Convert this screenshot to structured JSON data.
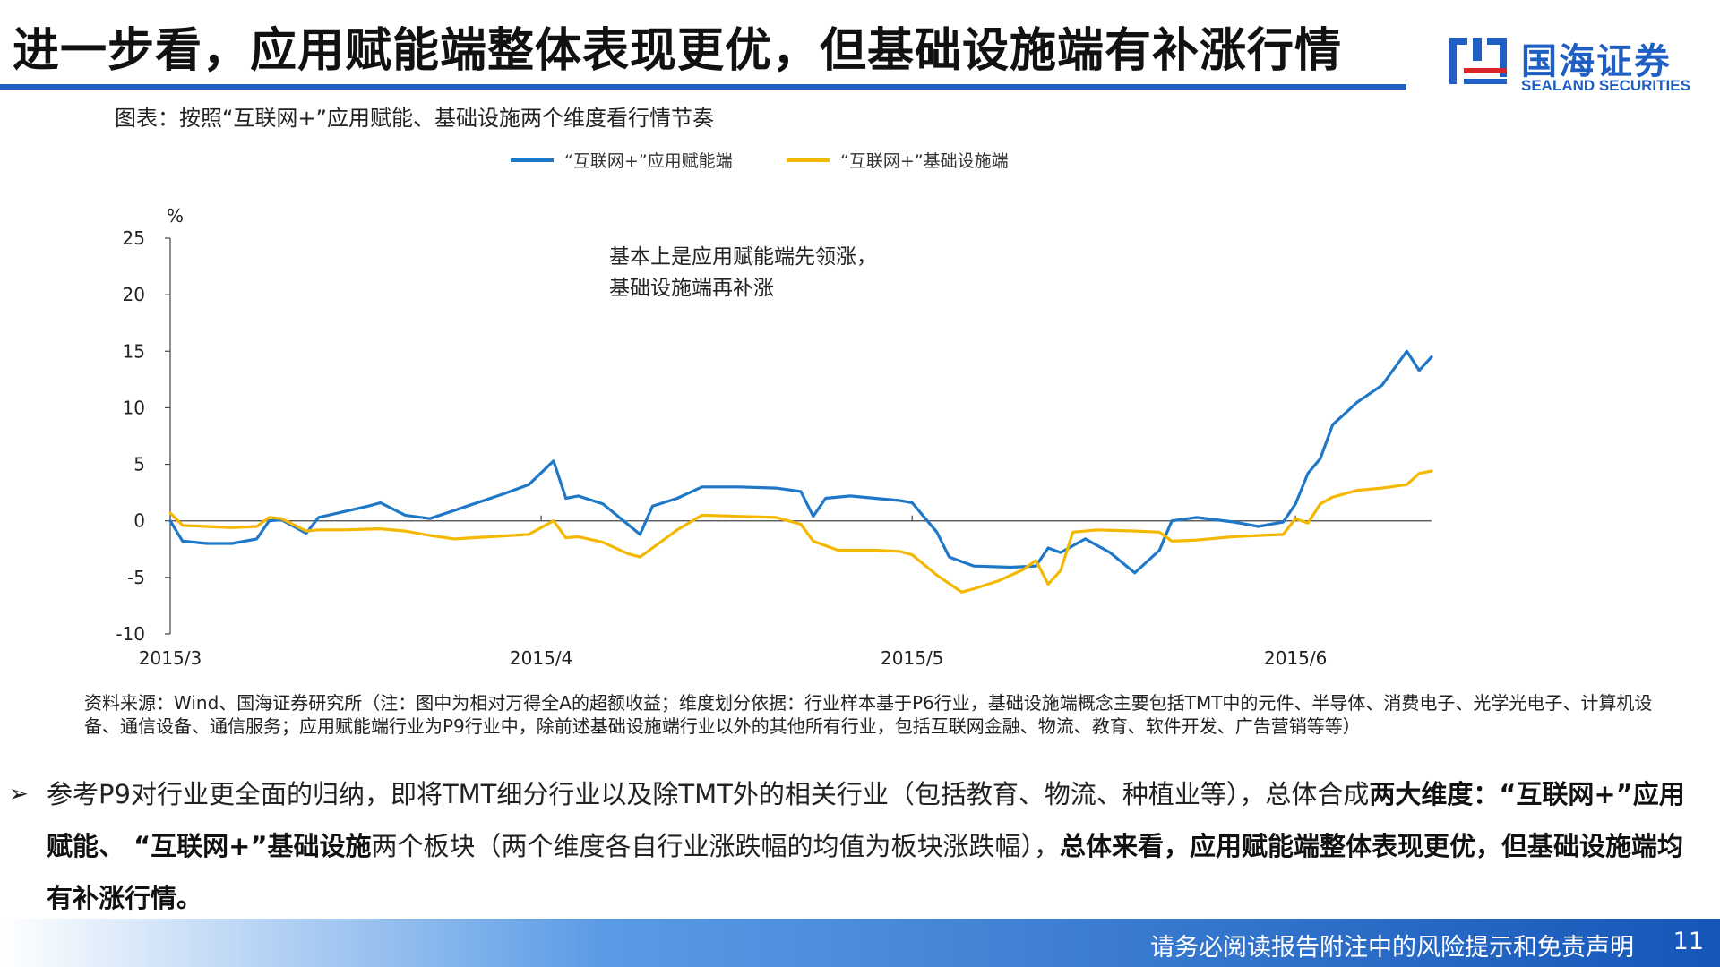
{
  "header": {
    "title": "进一步看，应用赋能端整体表现更优，但基础设施端有补涨行情",
    "logo_cn": "国海证券",
    "logo_en": "SEALAND SECURITIES",
    "accent_color": "#1f5fc4",
    "logo_icon": "sealand-logo-icon"
  },
  "figure": {
    "caption": "图表：按照“互联网+”应用赋能、基础设施两个维度看行情节奏",
    "note": "资料来源：Wind、国海证券研究所（注：图中为相对万得全A的超额收益；维度划分依据：行业样本基于P6行业，基础设施端概念主要包括TMT中的元件、半导体、消费电子、光学光电子、计算机设备、通信设备、通信服务；应用赋能端行业为P9行业中，除前述基础设施端行业以外的其他所有行业，包括互联网金融、物流、教育、软件开发、广告营销等等）"
  },
  "chart_data": {
    "type": "line",
    "title": "",
    "ylabel": "%",
    "xlabel": "",
    "ylim": [
      -10,
      25
    ],
    "yticks": [
      -10,
      -5,
      0,
      5,
      10,
      15,
      20,
      25
    ],
    "xlim": [
      "2015-03-02",
      "2015-06-12"
    ],
    "xtick_labels": [
      {
        "label": "2015/3",
        "date": "2015-03-02"
      },
      {
        "label": "2015/4",
        "date": "2015-04-01"
      },
      {
        "label": "2015/5",
        "date": "2015-05-01"
      },
      {
        "label": "2015/6",
        "date": "2015-06-01"
      }
    ],
    "legend_position": "top",
    "grid": false,
    "annotation": [
      "基本上是应用赋能端先领涨，",
      "基础设施端再补涨"
    ],
    "series": [
      {
        "name": "“互联网+”应用赋能端",
        "color": "#1f77c8",
        "points": [
          [
            "2015-03-02",
            0.0
          ],
          [
            "2015-03-03",
            -1.8
          ],
          [
            "2015-03-05",
            -2.0
          ],
          [
            "2015-03-07",
            -2.0
          ],
          [
            "2015-03-09",
            -1.6
          ],
          [
            "2015-03-10",
            0.0
          ],
          [
            "2015-03-11",
            0.1
          ],
          [
            "2015-03-13",
            -1.1
          ],
          [
            "2015-03-14",
            0.3
          ],
          [
            "2015-03-16",
            0.8
          ],
          [
            "2015-03-18",
            1.3
          ],
          [
            "2015-03-19",
            1.6
          ],
          [
            "2015-03-21",
            0.5
          ],
          [
            "2015-03-23",
            0.2
          ],
          [
            "2015-03-26",
            1.3
          ],
          [
            "2015-03-29",
            2.4
          ],
          [
            "2015-03-31",
            3.2
          ],
          [
            "2015-04-02",
            5.3
          ],
          [
            "2015-04-03",
            2.0
          ],
          [
            "2015-04-04",
            2.2
          ],
          [
            "2015-04-06",
            1.5
          ],
          [
            "2015-04-08",
            -0.3
          ],
          [
            "2015-04-09",
            -1.2
          ],
          [
            "2015-04-10",
            1.3
          ],
          [
            "2015-04-12",
            2.0
          ],
          [
            "2015-04-14",
            3.0
          ],
          [
            "2015-04-17",
            3.0
          ],
          [
            "2015-04-20",
            2.9
          ],
          [
            "2015-04-22",
            2.6
          ],
          [
            "2015-04-23",
            0.4
          ],
          [
            "2015-04-24",
            2.0
          ],
          [
            "2015-04-26",
            2.2
          ],
          [
            "2015-04-28",
            2.0
          ],
          [
            "2015-04-30",
            1.8
          ],
          [
            "2015-05-01",
            1.6
          ],
          [
            "2015-05-03",
            -1.0
          ],
          [
            "2015-05-04",
            -3.2
          ],
          [
            "2015-05-06",
            -4.0
          ],
          [
            "2015-05-09",
            -4.1
          ],
          [
            "2015-05-11",
            -4.0
          ],
          [
            "2015-05-12",
            -2.4
          ],
          [
            "2015-05-13",
            -2.8
          ],
          [
            "2015-05-15",
            -1.6
          ],
          [
            "2015-05-17",
            -2.8
          ],
          [
            "2015-05-19",
            -4.6
          ],
          [
            "2015-05-21",
            -2.6
          ],
          [
            "2015-05-22",
            0.0
          ],
          [
            "2015-05-24",
            0.3
          ],
          [
            "2015-05-27",
            -0.1
          ],
          [
            "2015-05-29",
            -0.5
          ],
          [
            "2015-05-31",
            -0.1
          ],
          [
            "2015-06-01",
            1.5
          ],
          [
            "2015-06-02",
            4.2
          ],
          [
            "2015-06-03",
            5.5
          ],
          [
            "2015-06-04",
            8.5
          ],
          [
            "2015-06-06",
            10.5
          ],
          [
            "2015-06-08",
            12.0
          ],
          [
            "2015-06-10",
            15.0
          ],
          [
            "2015-06-11",
            13.3
          ],
          [
            "2015-06-12",
            14.5
          ]
        ]
      },
      {
        "name": "“互联网+”基础设施端",
        "color": "#f5b800",
        "points": [
          [
            "2015-03-02",
            0.7
          ],
          [
            "2015-03-03",
            -0.4
          ],
          [
            "2015-03-05",
            -0.5
          ],
          [
            "2015-03-07",
            -0.6
          ],
          [
            "2015-03-09",
            -0.5
          ],
          [
            "2015-03-10",
            0.3
          ],
          [
            "2015-03-11",
            0.2
          ],
          [
            "2015-03-13",
            -0.9
          ],
          [
            "2015-03-14",
            -0.8
          ],
          [
            "2015-03-16",
            -0.8
          ],
          [
            "2015-03-19",
            -0.7
          ],
          [
            "2015-03-21",
            -0.9
          ],
          [
            "2015-03-23",
            -1.3
          ],
          [
            "2015-03-25",
            -1.6
          ],
          [
            "2015-03-28",
            -1.4
          ],
          [
            "2015-03-31",
            -1.2
          ],
          [
            "2015-04-02",
            0.0
          ],
          [
            "2015-04-03",
            -1.5
          ],
          [
            "2015-04-04",
            -1.4
          ],
          [
            "2015-04-06",
            -1.9
          ],
          [
            "2015-04-08",
            -2.9
          ],
          [
            "2015-04-09",
            -3.2
          ],
          [
            "2015-04-10",
            -2.4
          ],
          [
            "2015-04-12",
            -0.8
          ],
          [
            "2015-04-14",
            0.5
          ],
          [
            "2015-04-17",
            0.4
          ],
          [
            "2015-04-20",
            0.3
          ],
          [
            "2015-04-22",
            -0.3
          ],
          [
            "2015-04-23",
            -1.8
          ],
          [
            "2015-04-25",
            -2.6
          ],
          [
            "2015-04-28",
            -2.6
          ],
          [
            "2015-04-30",
            -2.7
          ],
          [
            "2015-05-01",
            -3.0
          ],
          [
            "2015-05-03",
            -4.8
          ],
          [
            "2015-05-05",
            -6.3
          ],
          [
            "2015-05-06",
            -6.0
          ],
          [
            "2015-05-08",
            -5.3
          ],
          [
            "2015-05-10",
            -4.3
          ],
          [
            "2015-05-11",
            -3.5
          ],
          [
            "2015-05-12",
            -5.6
          ],
          [
            "2015-05-13",
            -4.4
          ],
          [
            "2015-05-14",
            -1.0
          ],
          [
            "2015-05-16",
            -0.8
          ],
          [
            "2015-05-19",
            -0.9
          ],
          [
            "2015-05-21",
            -1.0
          ],
          [
            "2015-05-22",
            -1.8
          ],
          [
            "2015-05-24",
            -1.7
          ],
          [
            "2015-05-27",
            -1.4
          ],
          [
            "2015-05-29",
            -1.3
          ],
          [
            "2015-05-31",
            -1.2
          ],
          [
            "2015-06-01",
            0.2
          ],
          [
            "2015-06-02",
            -0.2
          ],
          [
            "2015-06-03",
            1.5
          ],
          [
            "2015-06-04",
            2.1
          ],
          [
            "2015-06-06",
            2.7
          ],
          [
            "2015-06-08",
            2.9
          ],
          [
            "2015-06-10",
            3.2
          ],
          [
            "2015-06-11",
            4.2
          ],
          [
            "2015-06-12",
            4.4
          ]
        ]
      }
    ]
  },
  "bullet": {
    "marker": "➢",
    "text_a": "参考P9对行业更全面的归纳，即将TMT细分行业以及除TMT外的相关行业（包括教育、物流、种植业等），总体合成",
    "bold_a": "两大维度：“互联网+”应用赋能、 “互联网+”基础设施",
    "text_b": "两个板块（两个维度各自行业涨跌幅的均值为板块涨跌幅），",
    "bold_b": "总体来看，应用赋能端整体表现更优，但基础设施端均有补涨行情。"
  },
  "footer": {
    "disclaimer": "请务必阅读报告附注中的风险提示和免责声明",
    "page_number": "11"
  }
}
